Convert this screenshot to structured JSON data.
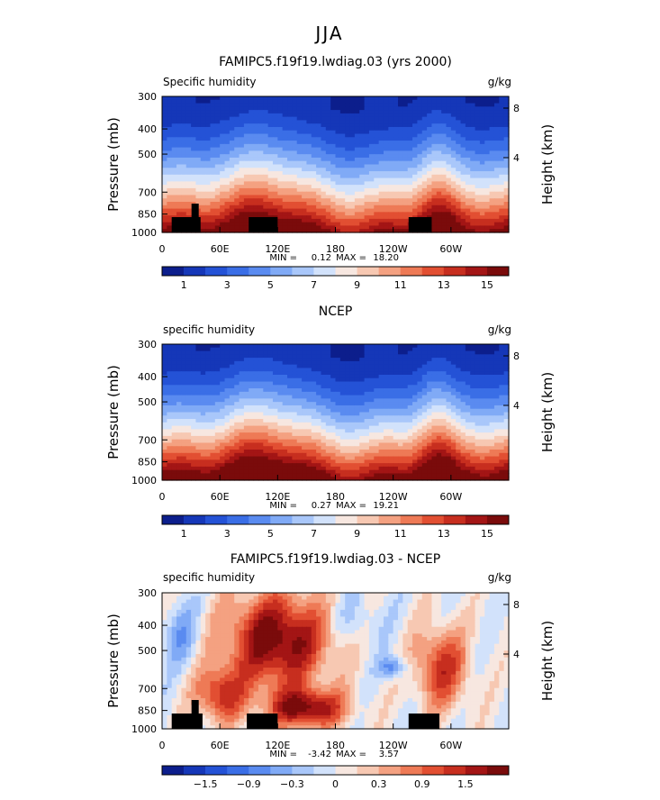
{
  "figure": {
    "title": "JJA"
  },
  "chart_data": [
    {
      "type": "heatmap",
      "title": "FAMIPC5.f19f19.lwdiag.03 (yrs 2000)",
      "left_label": "Specific humidity",
      "units": "g/kg",
      "ylabel": "Pressure (mb)",
      "y2label": "Height (km)",
      "y_ticks": [
        "300",
        "400",
        "500",
        "700",
        "850",
        "1000"
      ],
      "y2_ticks": [
        "8",
        "4"
      ],
      "x_ticks": [
        "0",
        "60E",
        "120E",
        "180",
        "120W",
        "60W"
      ],
      "min_label": "MIN =",
      "min_value": "0.12",
      "max_label": "MAX =",
      "max_value": "18.20",
      "colorbar_labels": [
        "1",
        "3",
        "5",
        "7",
        "9",
        "11",
        "13",
        "15"
      ],
      "colorbar_colors": [
        "#0c1e8c",
        "#1537b8",
        "#2452d6",
        "#3a6ee6",
        "#5a8bf0",
        "#80aaf6",
        "#a9c7fa",
        "#d2e2fb",
        "#f7e7e0",
        "#f7c8b2",
        "#f4a181",
        "#ee7a56",
        "#e24f32",
        "#c72e1f",
        "#a31515",
        "#7a0b0b"
      ],
      "ylim": [
        1000,
        300
      ],
      "xlim": [
        0,
        360
      ],
      "land_masks": [
        [
          10,
          40
        ],
        [
          90,
          120
        ],
        [
          256,
          280
        ]
      ]
    },
    {
      "type": "heatmap",
      "title": "NCEP",
      "left_label": "specific humidity",
      "units": "g/kg",
      "ylabel": "Pressure (mb)",
      "y2label": "Height (km)",
      "y_ticks": [
        "300",
        "400",
        "500",
        "700",
        "850",
        "1000"
      ],
      "y2_ticks": [
        "8",
        "4"
      ],
      "x_ticks": [
        "0",
        "60E",
        "120E",
        "180",
        "120W",
        "60W"
      ],
      "min_label": "MIN =",
      "min_value": "0.27",
      "max_label": "MAX =",
      "max_value": "19.21",
      "colorbar_labels": [
        "1",
        "3",
        "5",
        "7",
        "9",
        "11",
        "13",
        "15"
      ],
      "colorbar_colors": [
        "#0c1e8c",
        "#1537b8",
        "#2452d6",
        "#3a6ee6",
        "#5a8bf0",
        "#80aaf6",
        "#a9c7fa",
        "#d2e2fb",
        "#f7e7e0",
        "#f7c8b2",
        "#f4a181",
        "#ee7a56",
        "#e24f32",
        "#c72e1f",
        "#a31515",
        "#7a0b0b"
      ],
      "ylim": [
        1000,
        300
      ],
      "xlim": [
        0,
        360
      ],
      "land_masks": []
    },
    {
      "type": "heatmap",
      "title": "FAMIPC5.f19f19.lwdiag.03 - NCEP",
      "left_label": "specific humidity",
      "units": "g/kg",
      "ylabel": "Pressure (mb)",
      "y2label": "Height (km)",
      "y_ticks": [
        "300",
        "400",
        "500",
        "700",
        "850",
        "1000"
      ],
      "y2_ticks": [
        "8",
        "4"
      ],
      "x_ticks": [
        "0",
        "60E",
        "120E",
        "180",
        "120W",
        "60W"
      ],
      "min_label": "MIN =",
      "min_value": "-3.42",
      "max_label": "MAX =",
      "max_value": "3.57",
      "colorbar_labels": [
        "−1.5",
        "−0.9",
        "−0.3",
        "0",
        "0.3",
        "0.9",
        "1.5"
      ],
      "colorbar_colors": [
        "#0c1e8c",
        "#1537b8",
        "#2452d6",
        "#3a6ee6",
        "#5a8bf0",
        "#80aaf6",
        "#a9c7fa",
        "#d2e2fb",
        "#f7e7e0",
        "#f7c8b2",
        "#f4a181",
        "#ee7a56",
        "#e24f32",
        "#c72e1f",
        "#a31515",
        "#7a0b0b"
      ],
      "ylim": [
        1000,
        300
      ],
      "xlim": [
        0,
        360
      ],
      "land_masks": [
        [
          10,
          42
        ],
        [
          88,
          120
        ],
        [
          256,
          288
        ]
      ]
    }
  ]
}
